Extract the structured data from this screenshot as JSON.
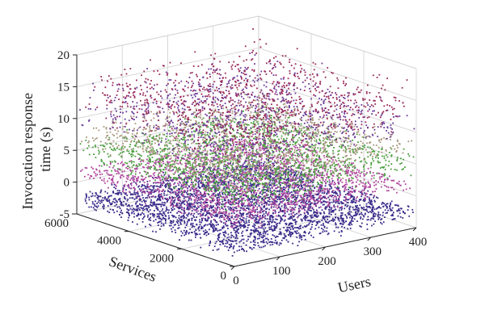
{
  "chart_data": {
    "type": "scatter",
    "title": "",
    "xlabel": "Users",
    "ylabel": "Services",
    "zlabel_lines": [
      "Invocation response",
      "time (s)"
    ],
    "xlim": [
      0,
      400
    ],
    "ylim": [
      0,
      6000
    ],
    "zlim": [
      -5,
      20
    ],
    "xticks": [
      "0",
      "100",
      "200",
      "300",
      "400"
    ],
    "yticks": [
      "0",
      "2000",
      "4000",
      "6000"
    ],
    "zticks": [
      "-5",
      "0",
      "5",
      "10",
      "15",
      "20"
    ],
    "grid": true,
    "series": [
      {
        "color": "#3a2a8a",
        "z_center": -2.5,
        "z_spread": 2.0,
        "points": 3200
      },
      {
        "color": "#b0479e",
        "z_center": 1.5,
        "z_spread": 1.6,
        "points": 1900
      },
      {
        "color": "#4a9e3e",
        "z_center": 5.0,
        "z_spread": 3.0,
        "points": 1600
      },
      {
        "color": "#a8977e",
        "z_center": 7.5,
        "z_spread": 3.0,
        "points": 1200
      },
      {
        "color": "#6a3a9a",
        "z_center": 11.5,
        "z_spread": 5.5,
        "points": 900
      },
      {
        "color": "#9a2a5a",
        "z_center": 14.0,
        "z_spread": 5.5,
        "points": 900
      }
    ]
  }
}
